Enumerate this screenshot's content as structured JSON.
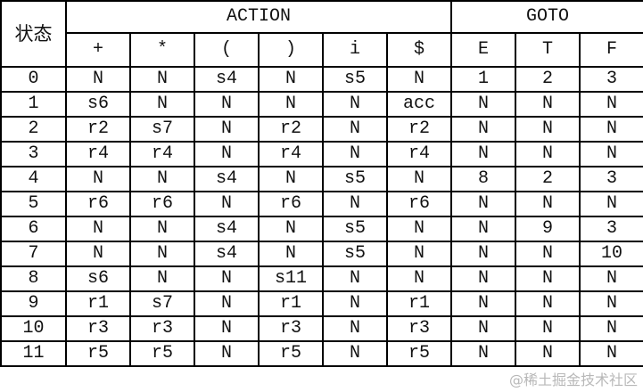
{
  "header": {
    "state_label": "状态",
    "action_label": "ACTION",
    "goto_label": "GOTO",
    "action_columns": [
      "+",
      "*",
      "(",
      ")",
      "i",
      "$"
    ],
    "goto_columns": [
      "E",
      "T",
      "F"
    ]
  },
  "rows": [
    [
      "0",
      "N",
      "N",
      "s4",
      "N",
      "s5",
      "N",
      "1",
      "2",
      "3"
    ],
    [
      "1",
      "s6",
      "N",
      "N",
      "N",
      "N",
      "acc",
      "N",
      "N",
      "N"
    ],
    [
      "2",
      "r2",
      "s7",
      "N",
      "r2",
      "N",
      "r2",
      "N",
      "N",
      "N"
    ],
    [
      "3",
      "r4",
      "r4",
      "N",
      "r4",
      "N",
      "r4",
      "N",
      "N",
      "N"
    ],
    [
      "4",
      "N",
      "N",
      "s4",
      "N",
      "s5",
      "N",
      "8",
      "2",
      "3"
    ],
    [
      "5",
      "r6",
      "r6",
      "N",
      "r6",
      "N",
      "r6",
      "N",
      "N",
      "N"
    ],
    [
      "6",
      "N",
      "N",
      "s4",
      "N",
      "s5",
      "N",
      "N",
      "9",
      "3"
    ],
    [
      "7",
      "N",
      "N",
      "s4",
      "N",
      "s5",
      "N",
      "N",
      "N",
      "10"
    ],
    [
      "8",
      "s6",
      "N",
      "N",
      "s11",
      "N",
      "N",
      "N",
      "N",
      "N"
    ],
    [
      "9",
      "r1",
      "s7",
      "N",
      "r1",
      "N",
      "r1",
      "N",
      "N",
      "N"
    ],
    [
      "10",
      "r3",
      "r3",
      "N",
      "r3",
      "N",
      "r3",
      "N",
      "N",
      "N"
    ],
    [
      "11",
      "r5",
      "r5",
      "N",
      "r5",
      "N",
      "r5",
      "N",
      "N",
      "N"
    ]
  ],
  "watermark": "@稀土掘金技术社区"
}
